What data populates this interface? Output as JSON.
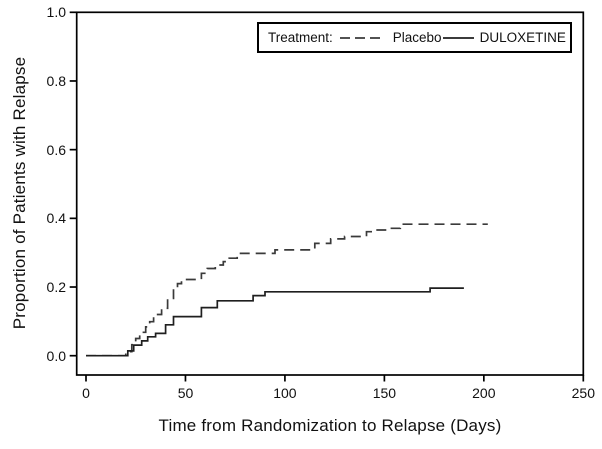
{
  "figure": {
    "background": "#ffffff",
    "frame_color": "#000000"
  },
  "chart_data": {
    "type": "line",
    "subtype": "kaplan-meier-step",
    "title": "",
    "xlabel": "Time from Randomization to Relapse (Days)",
    "ylabel": "Proportion of Patients with Relapse",
    "xlim": [
      0,
      250
    ],
    "ylim": [
      0.0,
      1.0
    ],
    "xticks": [
      0,
      50,
      100,
      150,
      200,
      250
    ],
    "yticks": [
      0.0,
      0.2,
      0.4,
      0.6,
      0.8,
      1.0
    ],
    "grid": false,
    "legend": {
      "label": "Treatment:",
      "position": "top-right",
      "entries": [
        {
          "name": "Placebo",
          "line_style": "dashed"
        },
        {
          "name": "DULOXETINE",
          "line_style": "solid"
        }
      ]
    },
    "series": [
      {
        "name": "Placebo",
        "line_style": "dashed",
        "color": "#3a3a3a",
        "end_x": 202,
        "points": [
          [
            0,
            0
          ],
          [
            20,
            0.012
          ],
          [
            23,
            0.032
          ],
          [
            25,
            0.05
          ],
          [
            27,
            0.068
          ],
          [
            30,
            0.084
          ],
          [
            32,
            0.099
          ],
          [
            34,
            0.12
          ],
          [
            38,
            0.138
          ],
          [
            41,
            0.167
          ],
          [
            44,
            0.196
          ],
          [
            46,
            0.21
          ],
          [
            48,
            0.222
          ],
          [
            58,
            0.24
          ],
          [
            61,
            0.254
          ],
          [
            65,
            0.264
          ],
          [
            69,
            0.274
          ],
          [
            72,
            0.284
          ],
          [
            76,
            0.298
          ],
          [
            95,
            0.308
          ],
          [
            115,
            0.327
          ],
          [
            123,
            0.34
          ],
          [
            130,
            0.347
          ],
          [
            141,
            0.361
          ],
          [
            145,
            0.366
          ],
          [
            152,
            0.371
          ],
          [
            158,
            0.383
          ]
        ]
      },
      {
        "name": "DULOXETINE",
        "line_style": "solid",
        "color": "#1f1f1f",
        "end_x": 190,
        "points": [
          [
            0,
            0
          ],
          [
            21,
            0.014
          ],
          [
            24,
            0.031
          ],
          [
            28,
            0.043
          ],
          [
            31,
            0.055
          ],
          [
            35,
            0.065
          ],
          [
            40,
            0.09
          ],
          [
            44,
            0.114
          ],
          [
            58,
            0.14
          ],
          [
            66,
            0.16
          ],
          [
            84,
            0.175
          ],
          [
            90,
            0.186
          ],
          [
            173,
            0.197
          ]
        ]
      }
    ]
  }
}
